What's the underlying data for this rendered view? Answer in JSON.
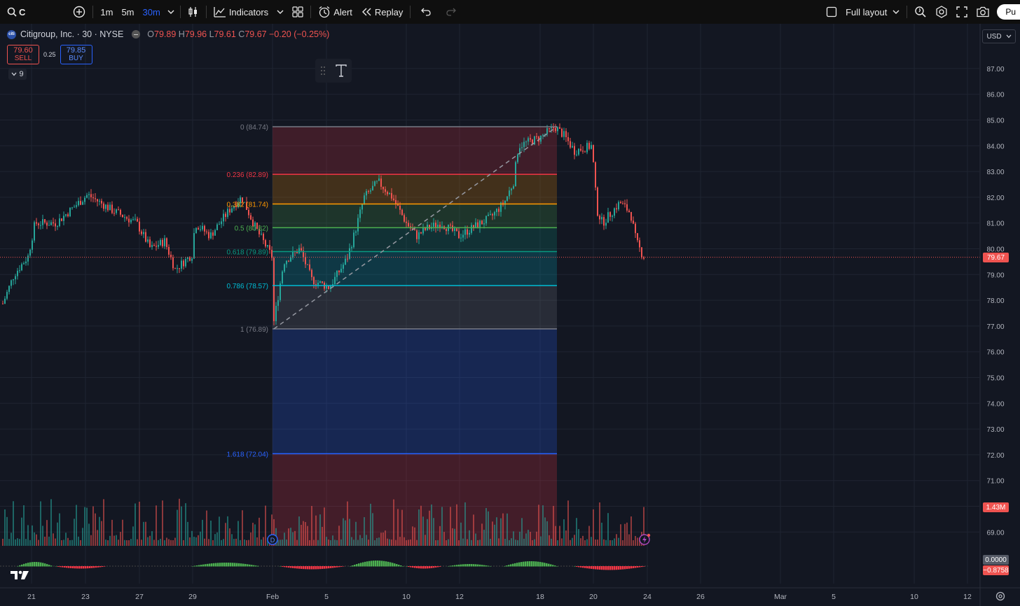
{
  "toolbar": {
    "symbol": "C",
    "timeframes": [
      "1m",
      "5m",
      "30m"
    ],
    "active_timeframe": "30m",
    "indicators_label": "Indicators",
    "alert_label": "Alert",
    "replay_label": "Replay",
    "layout_label": "Full layout",
    "publish_label": "Pu"
  },
  "legend": {
    "title": "Citigroup, Inc. · 30 · NYSE",
    "logo_text": "citi",
    "o_label": "O",
    "o": "79.89",
    "h_label": "H",
    "h": "79.96",
    "l_label": "L",
    "l": "79.61",
    "c_label": "C",
    "c": "79.67",
    "change": "−0.20 (−0.25%)"
  },
  "trade": {
    "sell_price": "79.60",
    "sell_label": "SELL",
    "spread": "0.25",
    "buy_price": "79.85",
    "buy_label": "BUY"
  },
  "collapse_count": "9",
  "currency": "USD",
  "price_axis": [
    "87.00",
    "86.00",
    "85.00",
    "84.00",
    "83.00",
    "82.00",
    "81.00",
    "80.00",
    "79.00",
    "78.00",
    "77.00",
    "76.00",
    "75.00",
    "74.00",
    "73.00",
    "72.00",
    "71.00",
    "70.00",
    "69.00"
  ],
  "time_axis": [
    "21",
    "23",
    "27",
    "29",
    "Feb",
    "5",
    "10",
    "12",
    "18",
    "20",
    "24",
    "26",
    "Mar",
    "5",
    "10",
    "12"
  ],
  "current_price": "79.67",
  "volume_tag": "1.43M",
  "osc_tags": [
    "0.0000",
    "−0.8758"
  ],
  "fib_levels": [
    {
      "label": "0 (84.74)",
      "price": 84.74,
      "color": "#787b86"
    },
    {
      "label": "0.236 (82.89)",
      "price": 82.89,
      "color": "#f23645"
    },
    {
      "label": "0.382 (81.74)",
      "price": 81.74,
      "color": "#ff9800"
    },
    {
      "label": "0.5 (80.82)",
      "price": 80.82,
      "color": "#4caf50"
    },
    {
      "label": "0.618 (79.89)",
      "price": 79.89,
      "color": "#089981"
    },
    {
      "label": "0.786 (78.57)",
      "price": 78.57,
      "color": "#00bcd4"
    },
    {
      "label": "1 (76.89)",
      "price": 76.89,
      "color": "#787b86"
    },
    {
      "label": "1.618 (72.04)",
      "price": 72.04,
      "color": "#2962ff"
    }
  ],
  "colors": {
    "up": "#26a69a",
    "down": "#ef5350",
    "accent": "#2962ff"
  },
  "icons": [
    "search-icon",
    "plus-circle-icon",
    "chevron-down-icon",
    "candles-icon",
    "indicators-icon",
    "templates-icon",
    "alert-clock-icon",
    "replay-icon",
    "undo-icon",
    "redo-icon",
    "checkbox-icon",
    "zoom-icon",
    "gear-icon",
    "fullscreen-icon",
    "camera-icon",
    "tradingview-logo-icon",
    "settings-gear-icon",
    "grip-icon",
    "text-tool-icon"
  ]
}
